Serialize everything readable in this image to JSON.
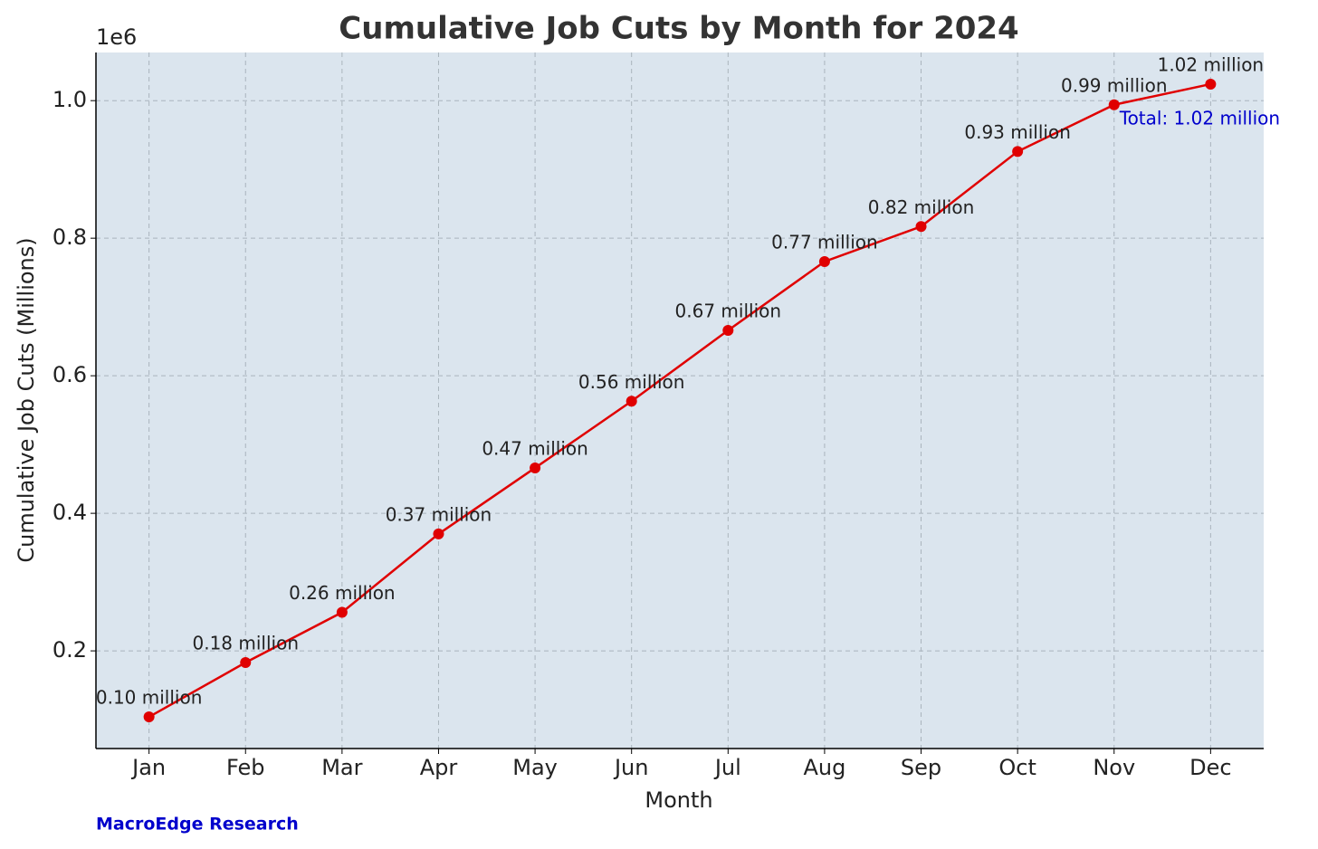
{
  "chart_data": {
    "type": "line",
    "title": "Cumulative Job Cuts by Month for 2024",
    "xlabel": "Month",
    "ylabel": "Cumulative Job Cuts (Millions)",
    "y_offset_label": "1e6",
    "categories": [
      "Jan",
      "Feb",
      "Mar",
      "Apr",
      "May",
      "Jun",
      "Jul",
      "Aug",
      "Sep",
      "Oct",
      "Nov",
      "Dec"
    ],
    "values": [
      0.104,
      0.183,
      0.256,
      0.37,
      0.466,
      0.563,
      0.666,
      0.766,
      0.817,
      0.926,
      0.994,
      1.024
    ],
    "value_labels": [
      "0.10 million",
      "0.18 million",
      "0.26 million",
      "0.37 million",
      "0.47 million",
      "0.56 million",
      "0.67 million",
      "0.77 million",
      "0.82 million",
      "0.93 million",
      "0.99 million",
      "1.02 million"
    ],
    "color": "#e00000",
    "ylim": [
      0.058,
      1.07
    ],
    "yticks": [
      0.2,
      0.4,
      0.6,
      0.8,
      {
        "value": 1,
        "label": "1.0"
      }
    ],
    "grid": true,
    "annotation": "Total: 1.02 million",
    "annotation_color": "#0000cc",
    "source": "MacroEdge Research",
    "source_color": "#0000cc"
  }
}
